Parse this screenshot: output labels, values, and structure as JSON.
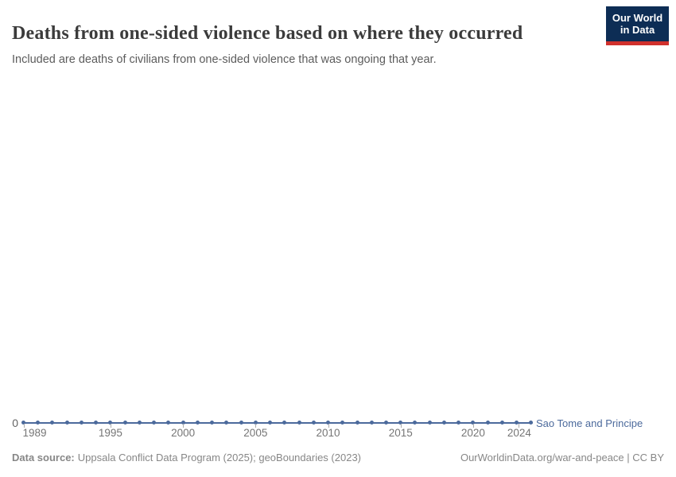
{
  "header": {
    "logo": {
      "line1": "Our World",
      "line2": "in Data",
      "bg_color": "#0d2d55",
      "bar_color": "#d0312d"
    }
  },
  "chart_data": {
    "type": "line",
    "title": "Deaths from one-sided violence based on where they occurred",
    "subtitle": "Included are deaths of civilians from one-sided violence that was ongoing that year.",
    "xlabel": "",
    "ylabel": "",
    "x": [
      1989,
      1990,
      1991,
      1992,
      1993,
      1994,
      1995,
      1996,
      1997,
      1998,
      1999,
      2000,
      2001,
      2002,
      2003,
      2004,
      2005,
      2006,
      2007,
      2008,
      2009,
      2010,
      2011,
      2012,
      2013,
      2014,
      2015,
      2016,
      2017,
      2018,
      2019,
      2020,
      2021,
      2022,
      2023,
      2024
    ],
    "x_ticks": [
      1989,
      1995,
      2000,
      2005,
      2010,
      2015,
      2020,
      2024
    ],
    "y_ticks": [
      0
    ],
    "y_tick_labels": [
      "0"
    ],
    "grid": false,
    "legend_position": "end-of-line",
    "series": [
      {
        "name": "Sao Tome and Principe",
        "color": "#4C6A9C",
        "values": [
          0,
          0,
          0,
          0,
          0,
          0,
          0,
          0,
          0,
          0,
          0,
          0,
          0,
          0,
          0,
          0,
          0,
          0,
          0,
          0,
          0,
          0,
          0,
          0,
          0,
          0,
          0,
          0,
          0,
          0,
          0,
          0,
          0,
          0,
          0,
          0
        ]
      }
    ]
  },
  "footer": {
    "source_label": "Data source:",
    "source_value": "Uppsala Conflict Data Program (2025); geoBoundaries (2023)",
    "rights": "OurWorldinData.org/war-and-peace | CC BY"
  }
}
